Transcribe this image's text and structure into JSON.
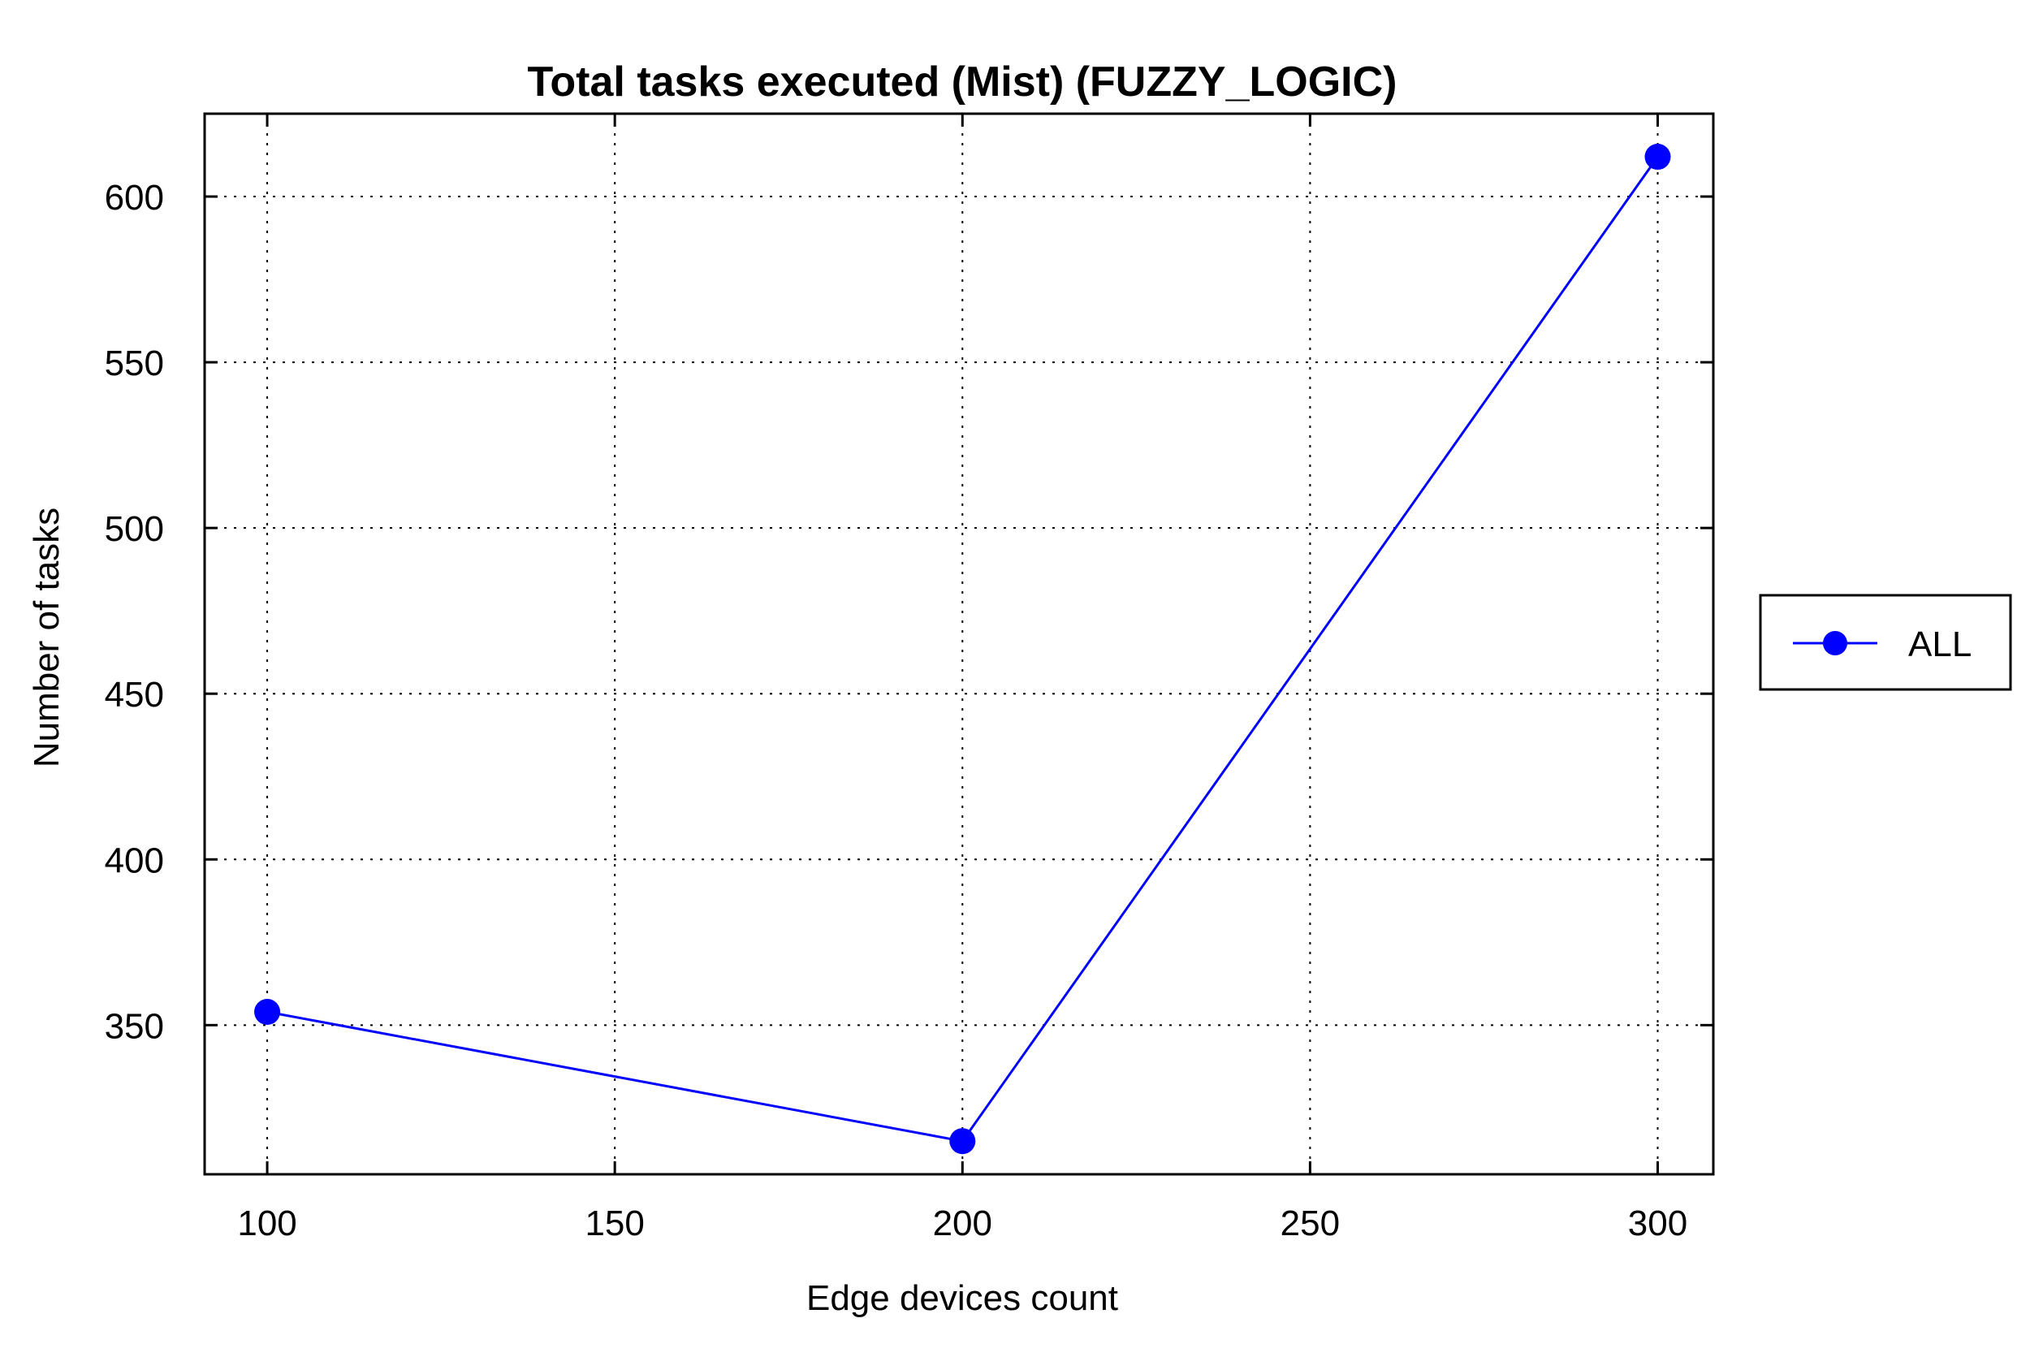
{
  "chart_data": {
    "type": "line",
    "title": "Total tasks executed (Mist) (FUZZY_LOGIC)",
    "xlabel": "Edge devices count",
    "ylabel": "Number of tasks",
    "x": [
      100,
      200,
      300
    ],
    "series": [
      {
        "name": "ALL",
        "values": [
          354,
          315,
          612
        ],
        "color": "#0000ff",
        "marker": "circle"
      }
    ],
    "xlim": [
      91,
      308
    ],
    "ylim": [
      305,
      625
    ],
    "xticks": [
      100,
      150,
      200,
      250,
      300
    ],
    "yticks": [
      350,
      400,
      450,
      500,
      550,
      600
    ],
    "grid": true,
    "grid_style": "dotted",
    "legend_position": "right"
  }
}
